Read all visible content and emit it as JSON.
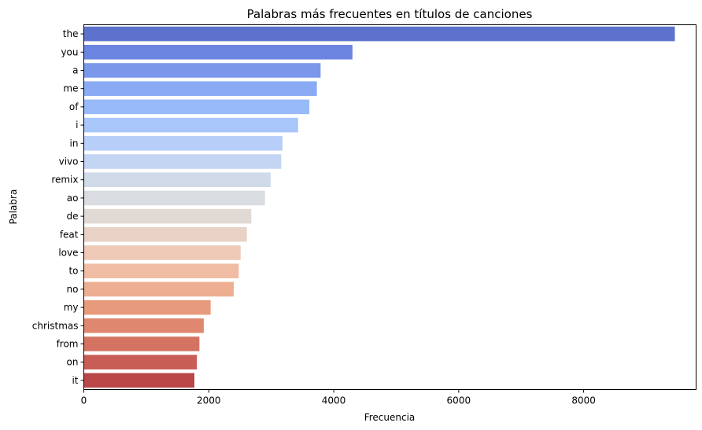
{
  "chart_data": {
    "type": "bar",
    "orientation": "horizontal",
    "title": "Palabras más frecuentes en títulos de canciones",
    "xlabel": "Frecuencia",
    "ylabel": "Palabra",
    "xlim": [
      0,
      9800
    ],
    "xticks": [
      0,
      2000,
      4000,
      6000,
      8000
    ],
    "xtick_labels": [
      "0",
      "2000",
      "4000",
      "6000",
      "8000"
    ],
    "grid": false,
    "legend": "none",
    "palette": "coolwarm",
    "categories": [
      "the",
      "you",
      "a",
      "me",
      "of",
      "i",
      "in",
      "vivo",
      "remix",
      "ao",
      "de",
      "feat",
      "love",
      "to",
      "no",
      "my",
      "christmas",
      "from",
      "on",
      "it"
    ],
    "values": [
      9460,
      4300,
      3790,
      3730,
      3610,
      3430,
      3180,
      3160,
      2990,
      2900,
      2680,
      2610,
      2510,
      2480,
      2400,
      2030,
      1920,
      1850,
      1810,
      1770
    ],
    "colors": [
      "#5d72cc",
      "#6a84e0",
      "#7a97ea",
      "#8aabf4",
      "#99baf9",
      "#a9c6fb",
      "#b7cff9",
      "#c4d5f3",
      "#d0dae9",
      "#d9dce1",
      "#e1d9d3",
      "#e8d2c5",
      "#eec9b6",
      "#f0bda4",
      "#eeae91",
      "#e89a7d",
      "#df876f",
      "#d47362",
      "#c75d55",
      "#ba4648"
    ]
  }
}
